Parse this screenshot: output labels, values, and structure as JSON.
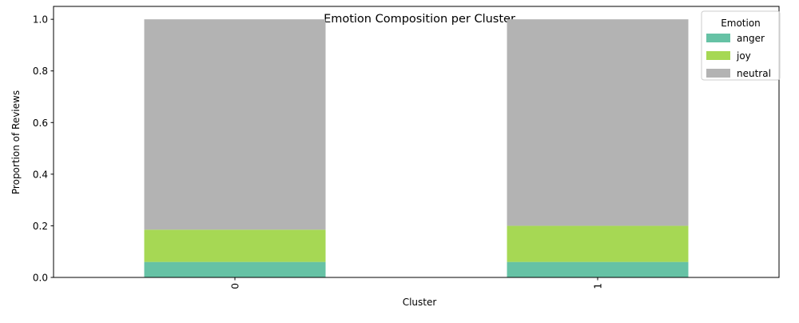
{
  "chart_data": {
    "type": "bar",
    "stacked": true,
    "title": "Emotion Composition per Cluster",
    "xlabel": "Cluster",
    "ylabel": "Proportion of Reviews",
    "categories": [
      "0",
      "1"
    ],
    "ylim": [
      0,
      1.05
    ],
    "yticks": [
      0.0,
      0.2,
      0.4,
      0.6,
      0.8,
      1.0
    ],
    "ytick_labels": [
      "0.0",
      "0.2",
      "0.4",
      "0.6",
      "0.8",
      "1.0"
    ],
    "grid": false,
    "legend": {
      "title": "Emotion",
      "placement": "top-right"
    },
    "series": [
      {
        "name": "anger",
        "color": "#66c2a5",
        "values": [
          0.06,
          0.06
        ]
      },
      {
        "name": "joy",
        "color": "#a6d854",
        "values": [
          0.125,
          0.14
        ]
      },
      {
        "name": "neutral",
        "color": "#b3b3b3",
        "values": [
          0.815,
          0.8
        ]
      }
    ]
  }
}
